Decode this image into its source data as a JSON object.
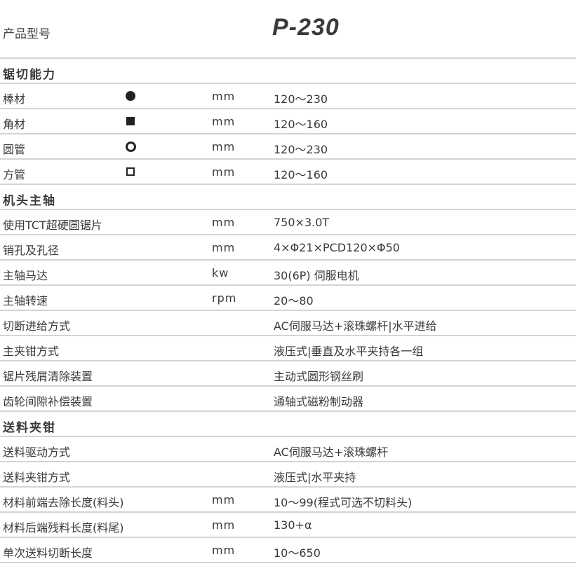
{
  "header": {
    "label": "产品型号",
    "model": "P-230"
  },
  "rows": [
    {
      "type": "section",
      "label": "锯切能力"
    },
    {
      "label": "棒材",
      "icon": "circle",
      "unit": "mm",
      "value": "120～230"
    },
    {
      "label": "角材",
      "icon": "square",
      "unit": "mm",
      "value": "120～160"
    },
    {
      "label": "圆管",
      "icon": "ring",
      "unit": "mm",
      "value": "120～230"
    },
    {
      "label": "方管",
      "icon": "sqring",
      "unit": "mm",
      "value": "120～160"
    },
    {
      "type": "section",
      "label": "机头主轴"
    },
    {
      "label": "使用TCT超硬圆锯片",
      "unit": "mm",
      "value": "750×3.0T"
    },
    {
      "label": "销孔及孔径",
      "unit": "mm",
      "value": "4×Φ21×PCD120×Φ50"
    },
    {
      "label": "主轴马达",
      "unit": "kw",
      "value": "30(6P) 伺服电机"
    },
    {
      "label": "主轴转速",
      "unit": "rpm",
      "value": "20～80"
    },
    {
      "label": "切断进给方式",
      "unit": "",
      "value": "AC伺服马达+滚珠螺杆|水平进给"
    },
    {
      "label": "主夹钳方式",
      "unit": "",
      "value": "液压式|垂直及水平夹持各一组"
    },
    {
      "label": "锯片残屑清除装置",
      "unit": "",
      "value": "主动式圆形钢丝刷"
    },
    {
      "label": "齿轮间隙补偿装置",
      "unit": "",
      "value": "通轴式磁粉制动器"
    },
    {
      "type": "section",
      "label": "送料夹钳"
    },
    {
      "label": "送料驱动方式",
      "unit": "",
      "value": "AC伺服马达+滚珠螺杆"
    },
    {
      "label": "送料夹钳方式",
      "unit": "",
      "value": "液压式|水平夹持"
    },
    {
      "label": "材料前端去除长度(料头)",
      "unit": "mm",
      "value": "10～99(程式可选不切料头)"
    },
    {
      "label": "材料后端残料长度(料尾)",
      "unit": "mm",
      "value": "130+α"
    },
    {
      "label": "单次送料切断长度",
      "unit": "mm",
      "value": "10～650"
    }
  ]
}
